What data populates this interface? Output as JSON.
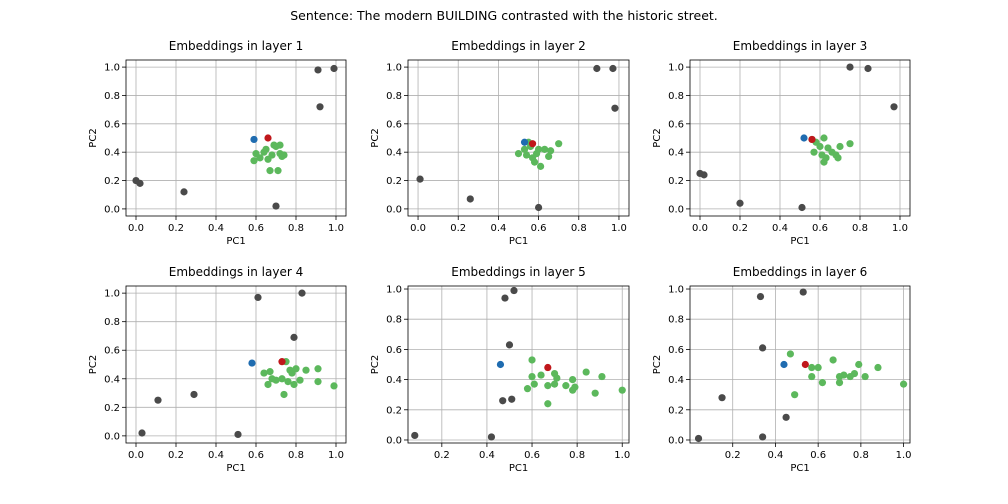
{
  "figure": {
    "suptitle": "Sentence: The modern BUILDING contrasted with the historic street."
  },
  "colors": {
    "background": "#ffffff",
    "grid": "#b0b0b0",
    "context_token": "#4a4a4a",
    "similar_token": "#5cb85c",
    "target_token": "#c0171b",
    "reference_token": "#1f6cb0"
  },
  "chart_data": [
    {
      "type": "scatter",
      "title": "Embeddings in layer 1",
      "xlabel": "PC1",
      "ylabel": "PC2",
      "xlim": [
        -0.05,
        1.05
      ],
      "ylim": [
        -0.05,
        1.05
      ],
      "xticks": [
        "0.0",
        "0.2",
        "0.4",
        "0.6",
        "0.8",
        "1.0"
      ],
      "yticks": [
        "0.0",
        "0.2",
        "0.4",
        "0.6",
        "0.8",
        "1.0"
      ],
      "grid": true,
      "series": [
        {
          "role": "context_token",
          "points": [
            [
              0.0,
              0.2
            ],
            [
              0.02,
              0.18
            ],
            [
              0.24,
              0.12
            ],
            [
              0.7,
              0.02
            ],
            [
              0.91,
              0.98
            ],
            [
              0.92,
              0.72
            ],
            [
              0.99,
              0.99
            ]
          ]
        },
        {
          "role": "similar_token",
          "points": [
            [
              0.59,
              0.34
            ],
            [
              0.6,
              0.39
            ],
            [
              0.62,
              0.36
            ],
            [
              0.64,
              0.4
            ],
            [
              0.65,
              0.42
            ],
            [
              0.66,
              0.35
            ],
            [
              0.67,
              0.27
            ],
            [
              0.68,
              0.38
            ],
            [
              0.69,
              0.45
            ],
            [
              0.7,
              0.44
            ],
            [
              0.71,
              0.27
            ],
            [
              0.72,
              0.39
            ],
            [
              0.73,
              0.37
            ],
            [
              0.74,
              0.38
            ],
            [
              0.72,
              0.45
            ]
          ]
        },
        {
          "role": "reference_token",
          "points": [
            [
              0.59,
              0.49
            ]
          ]
        },
        {
          "role": "target_token",
          "points": [
            [
              0.66,
              0.5
            ]
          ]
        }
      ]
    },
    {
      "type": "scatter",
      "title": "Embeddings in layer 2",
      "xlabel": "PC1",
      "ylabel": "PC2",
      "xlim": [
        -0.05,
        1.05
      ],
      "ylim": [
        -0.05,
        1.05
      ],
      "xticks": [
        "0.0",
        "0.2",
        "0.4",
        "0.6",
        "0.8",
        "1.0"
      ],
      "yticks": [
        "0.0",
        "0.2",
        "0.4",
        "0.6",
        "0.8",
        "1.0"
      ],
      "grid": true,
      "series": [
        {
          "role": "context_token",
          "points": [
            [
              0.01,
              0.21
            ],
            [
              0.26,
              0.07
            ],
            [
              0.6,
              0.01
            ],
            [
              0.89,
              0.99
            ],
            [
              0.97,
              0.99
            ],
            [
              0.98,
              0.71
            ]
          ]
        },
        {
          "role": "similar_token",
          "points": [
            [
              0.5,
              0.39
            ],
            [
              0.53,
              0.42
            ],
            [
              0.54,
              0.38
            ],
            [
              0.56,
              0.44
            ],
            [
              0.57,
              0.36
            ],
            [
              0.58,
              0.33
            ],
            [
              0.59,
              0.39
            ],
            [
              0.6,
              0.42
            ],
            [
              0.61,
              0.3
            ],
            [
              0.63,
              0.42
            ],
            [
              0.65,
              0.37
            ],
            [
              0.66,
              0.41
            ],
            [
              0.7,
              0.46
            ],
            [
              0.55,
              0.47
            ]
          ]
        },
        {
          "role": "reference_token",
          "points": [
            [
              0.53,
              0.47
            ]
          ]
        },
        {
          "role": "target_token",
          "points": [
            [
              0.57,
              0.46
            ]
          ]
        }
      ]
    },
    {
      "type": "scatter",
      "title": "Embeddings in layer 3",
      "xlabel": "PC1",
      "ylabel": "PC2",
      "xlim": [
        -0.05,
        1.05
      ],
      "ylim": [
        -0.05,
        1.05
      ],
      "xticks": [
        "0.0",
        "0.2",
        "0.4",
        "0.6",
        "0.8",
        "1.0"
      ],
      "yticks": [
        "0.0",
        "0.2",
        "0.4",
        "0.6",
        "0.8",
        "1.0"
      ],
      "grid": true,
      "series": [
        {
          "role": "context_token",
          "points": [
            [
              0.0,
              0.25
            ],
            [
              0.02,
              0.24
            ],
            [
              0.2,
              0.04
            ],
            [
              0.51,
              0.01
            ],
            [
              0.75,
              1.0
            ],
            [
              0.84,
              0.99
            ],
            [
              0.97,
              0.72
            ]
          ]
        },
        {
          "role": "similar_token",
          "points": [
            [
              0.57,
              0.4
            ],
            [
              0.58,
              0.47
            ],
            [
              0.6,
              0.44
            ],
            [
              0.61,
              0.38
            ],
            [
              0.62,
              0.33
            ],
            [
              0.62,
              0.5
            ],
            [
              0.63,
              0.36
            ],
            [
              0.64,
              0.43
            ],
            [
              0.66,
              0.4
            ],
            [
              0.68,
              0.38
            ],
            [
              0.69,
              0.36
            ],
            [
              0.7,
              0.44
            ],
            [
              0.75,
              0.46
            ],
            [
              0.56,
              0.49
            ]
          ]
        },
        {
          "role": "reference_token",
          "points": [
            [
              0.52,
              0.5
            ]
          ]
        },
        {
          "role": "target_token",
          "points": [
            [
              0.56,
              0.49
            ]
          ]
        }
      ]
    },
    {
      "type": "scatter",
      "title": "Embeddings in layer 4",
      "xlabel": "PC1",
      "ylabel": "PC2",
      "xlim": [
        -0.05,
        1.05
      ],
      "ylim": [
        -0.05,
        1.05
      ],
      "xticks": [
        "0.0",
        "0.2",
        "0.4",
        "0.6",
        "0.8",
        "1.0"
      ],
      "yticks": [
        "0.0",
        "0.2",
        "0.4",
        "0.6",
        "0.8",
        "1.0"
      ],
      "grid": true,
      "series": [
        {
          "role": "context_token",
          "points": [
            [
              0.03,
              0.02
            ],
            [
              0.11,
              0.25
            ],
            [
              0.29,
              0.29
            ],
            [
              0.51,
              0.01
            ],
            [
              0.61,
              0.97
            ],
            [
              0.79,
              0.69
            ],
            [
              0.83,
              1.0
            ]
          ]
        },
        {
          "role": "similar_token",
          "points": [
            [
              0.64,
              0.44
            ],
            [
              0.66,
              0.36
            ],
            [
              0.67,
              0.45
            ],
            [
              0.68,
              0.4
            ],
            [
              0.7,
              0.39
            ],
            [
              0.73,
              0.4
            ],
            [
              0.74,
              0.29
            ],
            [
              0.75,
              0.52
            ],
            [
              0.76,
              0.38
            ],
            [
              0.77,
              0.46
            ],
            [
              0.78,
              0.44
            ],
            [
              0.79,
              0.36
            ],
            [
              0.8,
              0.47
            ],
            [
              0.82,
              0.39
            ],
            [
              0.85,
              0.46
            ],
            [
              0.91,
              0.47
            ],
            [
              0.91,
              0.38
            ],
            [
              0.99,
              0.35
            ]
          ]
        },
        {
          "role": "reference_token",
          "points": [
            [
              0.58,
              0.51
            ]
          ]
        },
        {
          "role": "target_token",
          "points": [
            [
              0.73,
              0.52
            ]
          ]
        }
      ]
    },
    {
      "type": "scatter",
      "title": "Embeddings in layer 5",
      "xlabel": "PC1",
      "ylabel": "PC2",
      "xlim": [
        0.05,
        1.03
      ],
      "ylim": [
        -0.02,
        1.02
      ],
      "xticks": [
        "0.2",
        "0.4",
        "0.6",
        "0.8",
        "1.0"
      ],
      "yticks": [
        "0.0",
        "0.2",
        "0.4",
        "0.6",
        "0.8",
        "1.0"
      ],
      "grid": true,
      "series": [
        {
          "role": "context_token",
          "points": [
            [
              0.08,
              0.03
            ],
            [
              0.42,
              0.02
            ],
            [
              0.47,
              0.26
            ],
            [
              0.48,
              0.94
            ],
            [
              0.5,
              0.63
            ],
            [
              0.51,
              0.27
            ],
            [
              0.52,
              0.99
            ]
          ]
        },
        {
          "role": "similar_token",
          "points": [
            [
              0.58,
              0.34
            ],
            [
              0.6,
              0.42
            ],
            [
              0.6,
              0.53
            ],
            [
              0.61,
              0.37
            ],
            [
              0.64,
              0.43
            ],
            [
              0.67,
              0.36
            ],
            [
              0.67,
              0.24
            ],
            [
              0.7,
              0.44
            ],
            [
              0.7,
              0.37
            ],
            [
              0.71,
              0.41
            ],
            [
              0.75,
              0.36
            ],
            [
              0.78,
              0.4
            ],
            [
              0.78,
              0.33
            ],
            [
              0.79,
              0.35
            ],
            [
              0.84,
              0.45
            ],
            [
              0.88,
              0.31
            ],
            [
              0.91,
              0.42
            ],
            [
              1.0,
              0.33
            ]
          ]
        },
        {
          "role": "reference_token",
          "points": [
            [
              0.46,
              0.5
            ]
          ]
        },
        {
          "role": "target_token",
          "points": [
            [
              0.67,
              0.48
            ]
          ]
        }
      ]
    },
    {
      "type": "scatter",
      "title": "Embeddings in layer 6",
      "xlabel": "PC1",
      "ylabel": "PC2",
      "xlim": [
        0.0,
        1.03
      ],
      "ylim": [
        -0.02,
        1.02
      ],
      "xticks": [
        "0.2",
        "0.4",
        "0.6",
        "0.8",
        "1.0"
      ],
      "yticks": [
        "0.0",
        "0.2",
        "0.4",
        "0.6",
        "0.8",
        "1.0"
      ],
      "grid": true,
      "series": [
        {
          "role": "context_token",
          "points": [
            [
              0.04,
              0.01
            ],
            [
              0.15,
              0.28
            ],
            [
              0.33,
              0.95
            ],
            [
              0.34,
              0.61
            ],
            [
              0.34,
              0.02
            ],
            [
              0.45,
              0.15
            ],
            [
              0.53,
              0.98
            ]
          ]
        },
        {
          "role": "similar_token",
          "points": [
            [
              0.47,
              0.57
            ],
            [
              0.49,
              0.3
            ],
            [
              0.57,
              0.42
            ],
            [
              0.57,
              0.48
            ],
            [
              0.6,
              0.48
            ],
            [
              0.62,
              0.38
            ],
            [
              0.67,
              0.53
            ],
            [
              0.7,
              0.38
            ],
            [
              0.7,
              0.42
            ],
            [
              0.72,
              0.43
            ],
            [
              0.75,
              0.42
            ],
            [
              0.77,
              0.44
            ],
            [
              0.79,
              0.5
            ],
            [
              0.82,
              0.42
            ],
            [
              0.88,
              0.48
            ],
            [
              1.0,
              0.37
            ]
          ]
        },
        {
          "role": "reference_token",
          "points": [
            [
              0.44,
              0.5
            ]
          ]
        },
        {
          "role": "target_token",
          "points": [
            [
              0.54,
              0.5
            ]
          ]
        }
      ]
    }
  ]
}
